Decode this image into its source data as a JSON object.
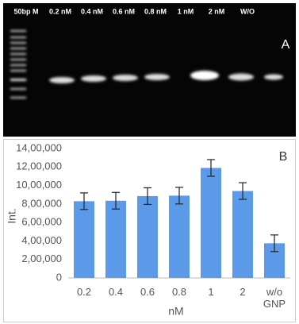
{
  "gel": {
    "lanes": [
      "50bp M",
      "0.2 nM",
      "0.4 nM",
      "0.6 nM",
      "0.8 nM",
      "1 nM",
      "2 nM",
      "W/O"
    ],
    "panel_label": "A"
  },
  "chart_data": {
    "type": "bar",
    "panel_label": "B",
    "y_label": "Int.",
    "x_label": "nM",
    "categories": [
      "0.2",
      "0.4",
      "0.6",
      "0.8",
      "1",
      "2",
      "w/o GNP"
    ],
    "values": [
      830000,
      835000,
      885000,
      890000,
      1190000,
      940000,
      375000
    ],
    "errors": [
      90000,
      90000,
      90000,
      90000,
      90000,
      90000,
      90000
    ],
    "color": "#5b9ae8",
    "ylim": [
      0,
      1400000
    ],
    "yticks": [
      0,
      {
        "value": 200000,
        "label": "2,00,000"
      },
      {
        "value": 400000,
        "label": "4,00,000"
      },
      {
        "value": 600000,
        "label": "6,00,000"
      },
      {
        "value": 800000,
        "label": "8,00,000"
      },
      {
        "value": 1000000,
        "label": "10,00,000"
      },
      {
        "value": 1200000,
        "label": "12,00,000"
      },
      {
        "value": 1400000,
        "label": "14,00,000"
      }
    ],
    "grid": false
  }
}
